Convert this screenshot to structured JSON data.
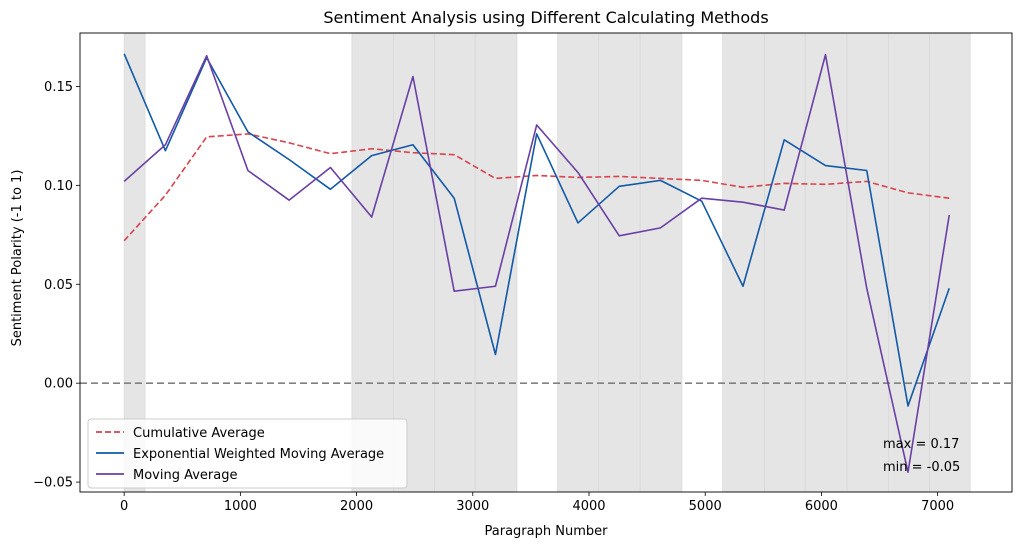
{
  "chart_data": {
    "type": "line",
    "title": "Sentiment Analysis using Different Calculating Methods",
    "xlabel": "Paragraph Number",
    "ylabel": "Sentiment Polarity (-1 to 1)",
    "xlim": [
      -380,
      7640
    ],
    "ylim": [
      -0.055,
      0.177
    ],
    "xticks": [
      0,
      1000,
      2000,
      3000,
      4000,
      5000,
      6000,
      7000
    ],
    "yticks": [
      -0.05,
      0.0,
      0.05,
      0.1,
      0.15
    ],
    "ytick_labels": [
      "−0.05",
      "0.00",
      "0.05",
      "0.10",
      "0.15"
    ],
    "zero_line": {
      "y": 0.0,
      "color": "#808080",
      "style": "dashed"
    },
    "shaded_regions": [
      [
        0,
        180
      ],
      [
        1960,
        2320
      ],
      [
        2320,
        2670
      ],
      [
        2670,
        3020
      ],
      [
        3020,
        3380
      ],
      [
        3730,
        4080
      ],
      [
        4080,
        4440
      ],
      [
        4440,
        4800
      ],
      [
        5150,
        5510
      ],
      [
        5510,
        5860
      ],
      [
        5860,
        6220
      ],
      [
        6220,
        6580
      ],
      [
        6580,
        6930
      ],
      [
        6930,
        7280
      ]
    ],
    "shade_color": "#e5e5e5",
    "x": [
      0,
      355,
      710,
      1065,
      1420,
      1775,
      2130,
      2485,
      2840,
      3195,
      3550,
      3905,
      4260,
      4615,
      4970,
      5325,
      5680,
      6035,
      6390,
      6745,
      7100
    ],
    "series": [
      {
        "name": "Cumulative Average",
        "color": "#d9434d",
        "style": "dashed",
        "values": [
          0.072,
          0.095,
          0.1245,
          0.126,
          0.1215,
          0.116,
          0.1185,
          0.1165,
          0.1155,
          0.1035,
          0.105,
          0.104,
          0.1045,
          0.1035,
          0.1025,
          0.099,
          0.101,
          0.1005,
          0.102,
          0.0962,
          0.0935
        ]
      },
      {
        "name": "Exponential Weighted Moving Average",
        "color": "#1259a8",
        "style": "solid",
        "values": [
          0.1665,
          0.1175,
          0.1645,
          0.127,
          0.113,
          0.098,
          0.115,
          0.1205,
          0.0935,
          0.0145,
          0.126,
          0.081,
          0.0995,
          0.1025,
          0.092,
          0.049,
          0.123,
          0.11,
          0.1075,
          -0.0115,
          0.048
        ]
      },
      {
        "name": "Moving Average",
        "color": "#6a3fa5",
        "style": "solid",
        "values": [
          0.102,
          0.1205,
          0.1655,
          0.1075,
          0.0925,
          0.109,
          0.084,
          0.155,
          0.0465,
          0.049,
          0.1305,
          0.1065,
          0.0745,
          0.0785,
          0.0935,
          0.0915,
          0.0875,
          0.166,
          0.048,
          -0.045,
          0.085
        ]
      }
    ],
    "legend_position": "lower-left",
    "annotations": [
      "max = 0.17",
      "min = -0.05"
    ]
  }
}
